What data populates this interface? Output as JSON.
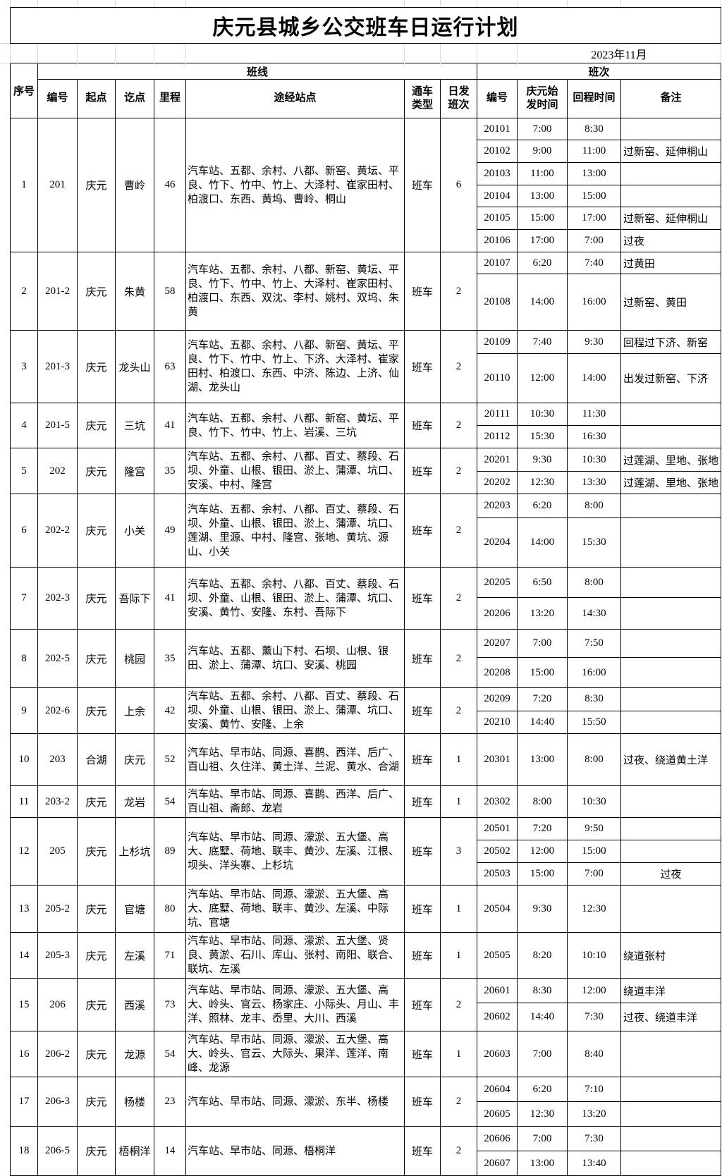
{
  "page": {
    "title": "庆元县城乡公交班车日运行计划",
    "date": "2023年11月"
  },
  "headers": {
    "seq": "序号",
    "line_group": "班线",
    "trip_group": "班次",
    "code": "编号",
    "origin": "起点",
    "dest": "讫点",
    "distance": "里程",
    "stops": "途经站点",
    "vehicle_type": "通车\n类型",
    "daily_trips": "日发\n班次",
    "trip_no": "编号",
    "depart": "庆元始\n发时间",
    "return": "回程时间",
    "remark": "备注"
  },
  "routes": [
    {
      "seq": "1",
      "code": "201",
      "origin": "庆元",
      "dest": "曹岭",
      "km": "46",
      "stops": "汽车站、五都、余村、八都、新窑、黄坛、平良、竹下、竹中、竹上、大泽村、崔家田村、柏渡口、东西、黄坞、曹岭、桐山",
      "type": "班车",
      "daily": "6",
      "trips": [
        {
          "no": "20101",
          "dep": "7:00",
          "ret": "8:30",
          "note": ""
        },
        {
          "no": "20102",
          "dep": "9:00",
          "ret": "11:00",
          "note": "过新窑、延伸桐山"
        },
        {
          "no": "20103",
          "dep": "11:00",
          "ret": "13:00",
          "note": ""
        },
        {
          "no": "20104",
          "dep": "13:00",
          "ret": "15:00",
          "note": ""
        },
        {
          "no": "20105",
          "dep": "15:00",
          "ret": "17:00",
          "note": "过新窑、延伸桐山"
        },
        {
          "no": "20106",
          "dep": "17:00",
          "ret": "7:00",
          "note": "过夜"
        }
      ]
    },
    {
      "seq": "2",
      "code": "201-2",
      "origin": "庆元",
      "dest": "朱黄",
      "km": "58",
      "stops": "汽车站、五都、余村、八都、新窑、黄坛、平良、竹下、竹中、竹上、大泽村、崔家田村、柏渡口、东西、双沈、李村、姚村、双坞、朱黄",
      "type": "班车",
      "daily": "2",
      "trips": [
        {
          "no": "20107",
          "dep": "6:20",
          "ret": "7:40",
          "note": "过黄田"
        },
        {
          "no": "20108",
          "dep": "14:00",
          "ret": "16:00",
          "note": "过新窑、黄田"
        }
      ]
    },
    {
      "seq": "3",
      "code": "201-3",
      "origin": "庆元",
      "dest": "龙头山",
      "km": "63",
      "stops": "汽车站、五都、余村、八都、新窑、黄坛、平良、竹下、竹中、竹上、下济、大泽村、崔家田村、柏渡口、东西、中济、陈边、上济、仙湖、龙头山",
      "type": "班车",
      "daily": "2",
      "trips": [
        {
          "no": "20109",
          "dep": "7:40",
          "ret": "9:30",
          "note": "回程过下济、新窑"
        },
        {
          "no": "20110",
          "dep": "12:00",
          "ret": "14:00",
          "note": "出发过新窑、下济"
        }
      ]
    },
    {
      "seq": "4",
      "code": "201-5",
      "origin": "庆元",
      "dest": "三坑",
      "km": "41",
      "stops": "汽车站、五都、余村、八都、新窑、黄坛、平良、竹下、竹中、竹上、岩溪、三坑",
      "type": "班车",
      "daily": "2",
      "trips": [
        {
          "no": "20111",
          "dep": "10:30",
          "ret": "11:30",
          "note": ""
        },
        {
          "no": "20112",
          "dep": "15:30",
          "ret": "16:30",
          "note": ""
        }
      ]
    },
    {
      "seq": "5",
      "code": "202",
      "origin": "庆元",
      "dest": "隆宫",
      "km": "35",
      "stops": "汽车站、五都、余村、八都、百丈、蔡段、石坝、外童、山根、银田、淤上、蒲潭、坑口、安溪、中村、隆宫",
      "type": "班车",
      "daily": "2",
      "trips": [
        {
          "no": "20201",
          "dep": "9:30",
          "ret": "10:30",
          "note": "过莲湖、里地、张地"
        },
        {
          "no": "20202",
          "dep": "12:30",
          "ret": "13:30",
          "note": "过莲湖、里地、张地"
        }
      ]
    },
    {
      "seq": "6",
      "code": "202-2",
      "origin": "庆元",
      "dest": "小关",
      "km": "49",
      "stops": "汽车站、五都、余村、八都、百丈、蔡段、石坝、外童、山根、银田、淤上、蒲潭、坑口、莲湖、里源、中村、隆宫、张地、黄坑、源山、小关",
      "type": "班车",
      "daily": "2",
      "trips": [
        {
          "no": "20203",
          "dep": "6:20",
          "ret": "8:00",
          "note": ""
        },
        {
          "no": "20204",
          "dep": "14:00",
          "ret": "15:30",
          "note": ""
        }
      ]
    },
    {
      "seq": "7",
      "code": "202-3",
      "origin": "庆元",
      "dest": "吾际下",
      "km": "41",
      "stops": "汽车站、五都、余村、八都、百丈、蔡段、石坝、外童、山根、银田、淤上、蒲潭、坑口、安溪、黄竹、安隆、东村、吾际下",
      "type": "班车",
      "daily": "2",
      "trips": [
        {
          "no": "20205",
          "dep": "6:50",
          "ret": "8:00",
          "note": ""
        },
        {
          "no": "20206",
          "dep": "13:20",
          "ret": "14:30",
          "note": ""
        }
      ]
    },
    {
      "seq": "8",
      "code": "202-5",
      "origin": "庆元",
      "dest": "桃园",
      "km": "35",
      "stops": "汽车站、五都、薰山下村、石坝、山根、银田、淤上、蒲潭、坑口、安溪、桃园",
      "type": "班车",
      "daily": "2",
      "trips": [
        {
          "no": "20207",
          "dep": "7:00",
          "ret": "7:50",
          "note": ""
        },
        {
          "no": "20208",
          "dep": "15:00",
          "ret": "16:00",
          "note": ""
        }
      ]
    },
    {
      "seq": "9",
      "code": "202-6",
      "origin": "庆元",
      "dest": "上余",
      "km": "42",
      "stops": "汽车站、五都、余村、八都、百丈、蔡段、石坝、外童、山根、银田、淤上、蒲潭、坑口、安溪、黄竹、安隆、上余",
      "type": "班车",
      "daily": "2",
      "trips": [
        {
          "no": "20209",
          "dep": "7:20",
          "ret": "8:30",
          "note": ""
        },
        {
          "no": "20210",
          "dep": "14:40",
          "ret": "15:50",
          "note": ""
        }
      ]
    },
    {
      "seq": "10",
      "code": "203",
      "origin": "合湖",
      "dest": "庆元",
      "km": "52",
      "stops": "汽车站、早市站、同源、喜鹊、西洋、后广、百山祖、久住洋、黄土洋、兰泥、黄水、合湖",
      "type": "班车",
      "daily": "1",
      "trips": [
        {
          "no": "20301",
          "dep": "13:00",
          "ret": "8:00",
          "note": "过夜、绕道黄土洋"
        }
      ]
    },
    {
      "seq": "11",
      "code": "203-2",
      "origin": "庆元",
      "dest": "龙岩",
      "km": "54",
      "stops": "汽车站、早市站、同源、喜鹊、西洋、后广、百山祖、斋郎、龙岩",
      "type": "班车",
      "daily": "1",
      "trips": [
        {
          "no": "20302",
          "dep": "8:00",
          "ret": "10:30",
          "note": ""
        }
      ]
    },
    {
      "seq": "12",
      "code": "205",
      "origin": "庆元",
      "dest": "上杉坑",
      "km": "89",
      "stops": "汽车站、早市站、同源、濛淤、五大堡、高大、底墅、荷地、联丰、黄沙、左溪、江根、坝头、洋头寨、上杉坑",
      "type": "班车",
      "daily": "3",
      "trips": [
        {
          "no": "20501",
          "dep": "7:20",
          "ret": "9:50",
          "note": ""
        },
        {
          "no": "20502",
          "dep": "12:00",
          "ret": "15:00",
          "note": ""
        },
        {
          "no": "20503",
          "dep": "15:00",
          "ret": "7:00",
          "note": "过夜",
          "note_center": true
        }
      ]
    },
    {
      "seq": "13",
      "code": "205-2",
      "origin": "庆元",
      "dest": "官塘",
      "km": "80",
      "stops": "汽车站、早市站、同源、濛淤、五大堡、高大、底墅、荷地、联丰、黄沙、左溪、中际坑、官塘",
      "type": "班车",
      "daily": "1",
      "trips": [
        {
          "no": "20504",
          "dep": "9:30",
          "ret": "12:30",
          "note": ""
        }
      ]
    },
    {
      "seq": "14",
      "code": "205-3",
      "origin": "庆元",
      "dest": "左溪",
      "km": "71",
      "stops": "汽车站、早市站、同源、濛淤、五大堡、贤良、黄淤、石川、库山、张村、南阳、联合、联坑、左溪",
      "type": "班车",
      "daily": "1",
      "trips": [
        {
          "no": "20505",
          "dep": "8:20",
          "ret": "10:10",
          "note": "绕道张村"
        }
      ]
    },
    {
      "seq": "15",
      "code": "206",
      "origin": "庆元",
      "dest": "西溪",
      "km": "73",
      "stops": "汽车站、早市站、同源、濛淤、五大堡、高大、岭头、官云、杨家庄、小际头、月山、丰洋、照林、龙丰、岙里、大川、西溪",
      "type": "班车",
      "daily": "2",
      "trips": [
        {
          "no": "20601",
          "dep": "8:30",
          "ret": "12:00",
          "note": "绕道丰洋"
        },
        {
          "no": "20602",
          "dep": "14:40",
          "ret": "7:30",
          "note": "过夜、绕道丰洋"
        }
      ]
    },
    {
      "seq": "16",
      "code": "206-2",
      "origin": "庆元",
      "dest": "龙源",
      "km": "54",
      "stops": "汽车站、早市站、同源、濛淤、五大堡、高大、岭头、官云、大际头、果洋、莲洋、南峰、龙源",
      "type": "班车",
      "daily": "1",
      "trips": [
        {
          "no": "20603",
          "dep": "7:00",
          "ret": "8:40",
          "note": ""
        }
      ]
    },
    {
      "seq": "17",
      "code": "206-3",
      "origin": "庆元",
      "dest": "杨楼",
      "km": "23",
      "stops": "汽车站、早市站、同源、濛淤、东半、杨楼",
      "type": "班车",
      "daily": "2",
      "trips": [
        {
          "no": "20604",
          "dep": "6:20",
          "ret": "7:10",
          "note": ""
        },
        {
          "no": "20605",
          "dep": "12:30",
          "ret": "13:20",
          "note": ""
        }
      ]
    },
    {
      "seq": "18",
      "code": "206-5",
      "origin": "庆元",
      "dest": "梧桐洋",
      "km": "14",
      "stops": "汽车站、早市站、同源、梧桐洋",
      "type": "班车",
      "daily": "2",
      "trips": [
        {
          "no": "20606",
          "dep": "7:00",
          "ret": "7:30",
          "note": ""
        },
        {
          "no": "20607",
          "dep": "13:00",
          "ret": "13:40",
          "note": ""
        }
      ]
    }
  ]
}
